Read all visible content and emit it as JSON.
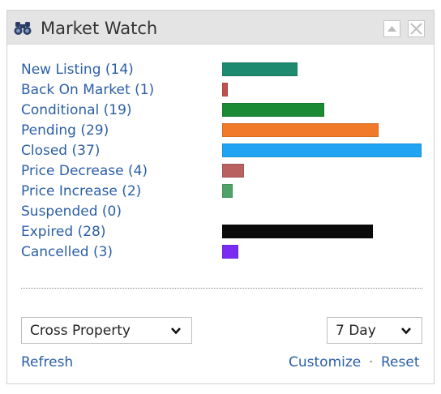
{
  "header": {
    "title": "Market Watch",
    "icon": "binoculars-icon",
    "collapse_icon": "triangle-up-icon",
    "close_icon": "close-icon"
  },
  "max_count": 37,
  "items": [
    {
      "label": "New Listing (14)",
      "count": 14,
      "color": "#1e8a70"
    },
    {
      "label": "Back On Market (1)",
      "count": 1,
      "color": "#c0504d"
    },
    {
      "label": "Conditional (19)",
      "count": 19,
      "color": "#1a8a34"
    },
    {
      "label": "Pending (29)",
      "count": 29,
      "color": "#f07a2a"
    },
    {
      "label": "Closed (37)",
      "count": 37,
      "color": "#1fa3f2"
    },
    {
      "label": "Price Decrease (4)",
      "count": 4,
      "color": "#b96060"
    },
    {
      "label": "Price Increase (2)",
      "count": 2,
      "color": "#4fa36a"
    },
    {
      "label": "Suspended (0)",
      "count": 0,
      "color": "#888888"
    },
    {
      "label": "Expired (28)",
      "count": 28,
      "color": "#0a0a0a"
    },
    {
      "label": "Cancelled (3)",
      "count": 3,
      "color": "#7a2cf2"
    }
  ],
  "controls": {
    "property_select": {
      "value": "Cross Property"
    },
    "period_select": {
      "value": "7 Day"
    }
  },
  "footer": {
    "refresh": "Refresh",
    "customize": "Customize",
    "separator": "·",
    "reset": "Reset"
  }
}
